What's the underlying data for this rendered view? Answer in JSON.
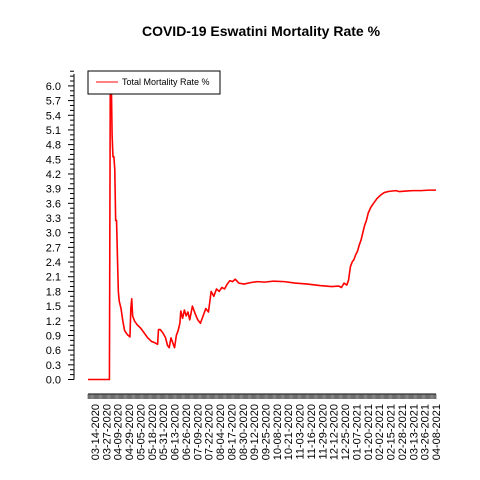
{
  "colors": {
    "series": "#ff0000",
    "axis": "#000000",
    "background": "#ffffff"
  },
  "chart_data": {
    "type": "line",
    "title": "COVID-19 Eswatini Mortality Rate %",
    "xlabel": "",
    "ylabel": "",
    "ylim": [
      0,
      6.2
    ],
    "y_ticks": [
      "0.0",
      "0.3",
      "0.6",
      "0.9",
      "1.2",
      "1.5",
      "1.8",
      "2.1",
      "2.4",
      "2.7",
      "3.0",
      "3.3",
      "3.6",
      "3.9",
      "4.2",
      "4.5",
      "4.8",
      "5.1",
      "5.4",
      "5.7",
      "6.0"
    ],
    "x_ticks": [
      "03-14-2020",
      "03-27-2020",
      "04-09-2020",
      "04-29-2020",
      "05-05-2020",
      "05-18-2020",
      "05-31-2020",
      "06-13-2020",
      "06-26-2020",
      "07-09-2020",
      "07-22-2020",
      "08-04-2020",
      "08-17-2020",
      "08-30-2020",
      "09-12-2020",
      "09-25-2020",
      "10-08-2020",
      "10-21-2020",
      "11-03-2020",
      "11-16-2020",
      "11-29-2020",
      "12-12-2020",
      "12-25-2020",
      "01-07-2021",
      "01-20-2021",
      "02-02-2021",
      "02-15-2021",
      "02-28-2021",
      "03-13-2021",
      "03-26-2021",
      "04-08-2021"
    ],
    "xlim": [
      "2020-03-14",
      "2021-04-08"
    ],
    "legend": {
      "position": "top-left",
      "entries": [
        "Total Mortality Rate %"
      ]
    },
    "grid": false,
    "series": [
      {
        "name": "Total Mortality Rate %",
        "color": "#ff0000",
        "points": [
          [
            "2020-03-14",
            0.0
          ],
          [
            "2020-04-01",
            0.0
          ],
          [
            "2020-04-07",
            0.0
          ],
          [
            "2020-04-08",
            6.25
          ],
          [
            "2020-04-09",
            6.25
          ],
          [
            "2020-04-10",
            5.0
          ],
          [
            "2020-04-11",
            4.55
          ],
          [
            "2020-04-12",
            4.55
          ],
          [
            "2020-04-13",
            4.3
          ],
          [
            "2020-04-14",
            3.25
          ],
          [
            "2020-04-15",
            3.25
          ],
          [
            "2020-04-16",
            2.5
          ],
          [
            "2020-04-17",
            1.8
          ],
          [
            "2020-04-18",
            1.6
          ],
          [
            "2020-04-20",
            1.45
          ],
          [
            "2020-04-22",
            1.2
          ],
          [
            "2020-04-24",
            1.0
          ],
          [
            "2020-04-27",
            0.92
          ],
          [
            "2020-04-30",
            0.87
          ],
          [
            "2020-05-01",
            1.45
          ],
          [
            "2020-05-02",
            1.65
          ],
          [
            "2020-05-03",
            1.3
          ],
          [
            "2020-05-05",
            1.2
          ],
          [
            "2020-05-08",
            1.12
          ],
          [
            "2020-05-12",
            1.05
          ],
          [
            "2020-05-16",
            0.95
          ],
          [
            "2020-05-20",
            0.85
          ],
          [
            "2020-05-24",
            0.78
          ],
          [
            "2020-05-28",
            0.75
          ],
          [
            "2020-05-31",
            0.72
          ],
          [
            "2020-06-01",
            1.02
          ],
          [
            "2020-06-03",
            1.02
          ],
          [
            "2020-06-06",
            0.95
          ],
          [
            "2020-06-09",
            0.85
          ],
          [
            "2020-06-11",
            0.7
          ],
          [
            "2020-06-13",
            0.65
          ],
          [
            "2020-06-15",
            0.85
          ],
          [
            "2020-06-17",
            0.75
          ],
          [
            "2020-06-19",
            0.65
          ],
          [
            "2020-06-21",
            0.9
          ],
          [
            "2020-06-23",
            1.0
          ],
          [
            "2020-06-25",
            1.15
          ],
          [
            "2020-06-26",
            1.4
          ],
          [
            "2020-06-28",
            1.25
          ],
          [
            "2020-06-30",
            1.42
          ],
          [
            "2020-07-02",
            1.3
          ],
          [
            "2020-07-04",
            1.38
          ],
          [
            "2020-07-06",
            1.22
          ],
          [
            "2020-07-09",
            1.5
          ],
          [
            "2020-07-12",
            1.35
          ],
          [
            "2020-07-15",
            1.22
          ],
          [
            "2020-07-18",
            1.15
          ],
          [
            "2020-07-21",
            1.3
          ],
          [
            "2020-07-24",
            1.45
          ],
          [
            "2020-07-27",
            1.38
          ],
          [
            "2020-07-30",
            1.8
          ],
          [
            "2020-08-02",
            1.7
          ],
          [
            "2020-08-05",
            1.85
          ],
          [
            "2020-08-08",
            1.8
          ],
          [
            "2020-08-11",
            1.88
          ],
          [
            "2020-08-14",
            1.85
          ],
          [
            "2020-08-17",
            1.95
          ],
          [
            "2020-08-20",
            2.02
          ],
          [
            "2020-08-23",
            2.0
          ],
          [
            "2020-08-26",
            2.05
          ],
          [
            "2020-08-30",
            1.97
          ],
          [
            "2020-09-05",
            1.95
          ],
          [
            "2020-09-12",
            1.98
          ],
          [
            "2020-09-20",
            2.0
          ],
          [
            "2020-09-28",
            1.99
          ],
          [
            "2020-10-08",
            2.01
          ],
          [
            "2020-10-20",
            2.0
          ],
          [
            "2020-11-01",
            1.97
          ],
          [
            "2020-11-15",
            1.95
          ],
          [
            "2020-11-29",
            1.92
          ],
          [
            "2020-12-12",
            1.9
          ],
          [
            "2020-12-20",
            1.91
          ],
          [
            "2020-12-23",
            1.88
          ],
          [
            "2020-12-26",
            1.97
          ],
          [
            "2020-12-29",
            1.93
          ],
          [
            "2020-12-31",
            2.03
          ],
          [
            "2021-01-02",
            2.3
          ],
          [
            "2021-01-04",
            2.4
          ],
          [
            "2021-01-06",
            2.45
          ],
          [
            "2021-01-08",
            2.55
          ],
          [
            "2021-01-10",
            2.62
          ],
          [
            "2021-01-12",
            2.75
          ],
          [
            "2021-01-14",
            2.85
          ],
          [
            "2021-01-16",
            3.0
          ],
          [
            "2021-01-18",
            3.15
          ],
          [
            "2021-01-20",
            3.25
          ],
          [
            "2021-01-22",
            3.4
          ],
          [
            "2021-01-25",
            3.52
          ],
          [
            "2021-01-28",
            3.6
          ],
          [
            "2021-02-01",
            3.7
          ],
          [
            "2021-02-05",
            3.77
          ],
          [
            "2021-02-09",
            3.82
          ],
          [
            "2021-02-13",
            3.84
          ],
          [
            "2021-02-17",
            3.85
          ],
          [
            "2021-02-22",
            3.86
          ],
          [
            "2021-02-26",
            3.84
          ],
          [
            "2021-03-05",
            3.85
          ],
          [
            "2021-03-13",
            3.86
          ],
          [
            "2021-03-22",
            3.86
          ],
          [
            "2021-03-31",
            3.87
          ],
          [
            "2021-04-08",
            3.87
          ]
        ]
      }
    ]
  }
}
